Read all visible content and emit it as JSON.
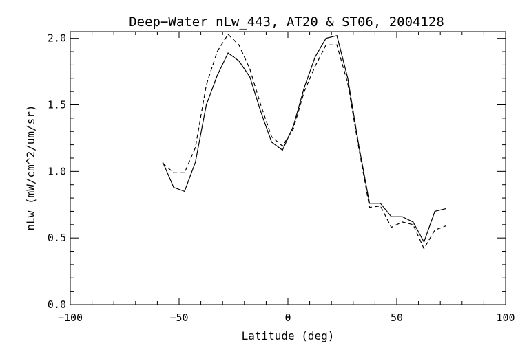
{
  "chart_data": {
    "type": "line",
    "title": "Deep−Water nLw_443, AT20 & ST06, 2004128",
    "xlabel": "Latitude (deg)",
    "ylabel": "nLw (mW/cm^2/um/sr)",
    "xlim": [
      -100,
      100
    ],
    "ylim": [
      0.0,
      2.05
    ],
    "xticks": [
      -100,
      -50,
      0,
      50,
      100
    ],
    "xtick_labels": [
      "−100",
      "−50",
      "0",
      "50",
      "100"
    ],
    "yticks": [
      0.0,
      0.5,
      1.0,
      1.5,
      2.0
    ],
    "ytick_labels": [
      "0.0",
      "0.5",
      "1.0",
      "1.5",
      "2.0"
    ],
    "grid": false,
    "colors": {
      "line": "#000000",
      "background": "#ffffff"
    },
    "series": [
      {
        "style": "solid",
        "x": [
          -57.5,
          -52.5,
          -47.5,
          -42.5,
          -37.5,
          -32.5,
          -27.5,
          -22.5,
          -17.5,
          -12.5,
          -7.5,
          -2.5,
          2.5,
          7.5,
          12.5,
          17.5,
          22.5,
          27.5,
          32.5,
          37.5,
          42.5,
          47.5,
          52.5,
          57.5,
          62.5,
          67.5,
          72.5
        ],
        "y": [
          1.07,
          0.88,
          0.85,
          1.07,
          1.5,
          1.72,
          1.89,
          1.83,
          1.71,
          1.45,
          1.22,
          1.16,
          1.34,
          1.63,
          1.86,
          2.0,
          2.02,
          1.7,
          1.2,
          0.76,
          0.76,
          0.66,
          0.66,
          0.62,
          0.47,
          0.7,
          0.72
        ]
      },
      {
        "style": "dashed",
        "x": [
          -57.5,
          -52.5,
          -47.5,
          -42.5,
          -37.5,
          -32.5,
          -27.5,
          -22.5,
          -17.5,
          -12.5,
          -7.5,
          -2.5,
          2.5,
          7.5,
          12.5,
          17.5,
          22.5,
          27.5,
          32.5,
          37.5,
          42.5,
          47.5,
          52.5,
          57.5,
          62.5,
          67.5,
          72.5
        ],
        "y": [
          1.06,
          0.99,
          0.99,
          1.18,
          1.65,
          1.9,
          2.03,
          1.95,
          1.77,
          1.5,
          1.26,
          1.19,
          1.32,
          1.6,
          1.79,
          1.95,
          1.95,
          1.66,
          1.18,
          0.73,
          0.74,
          0.58,
          0.62,
          0.6,
          0.42,
          0.56,
          0.59
        ]
      }
    ]
  }
}
